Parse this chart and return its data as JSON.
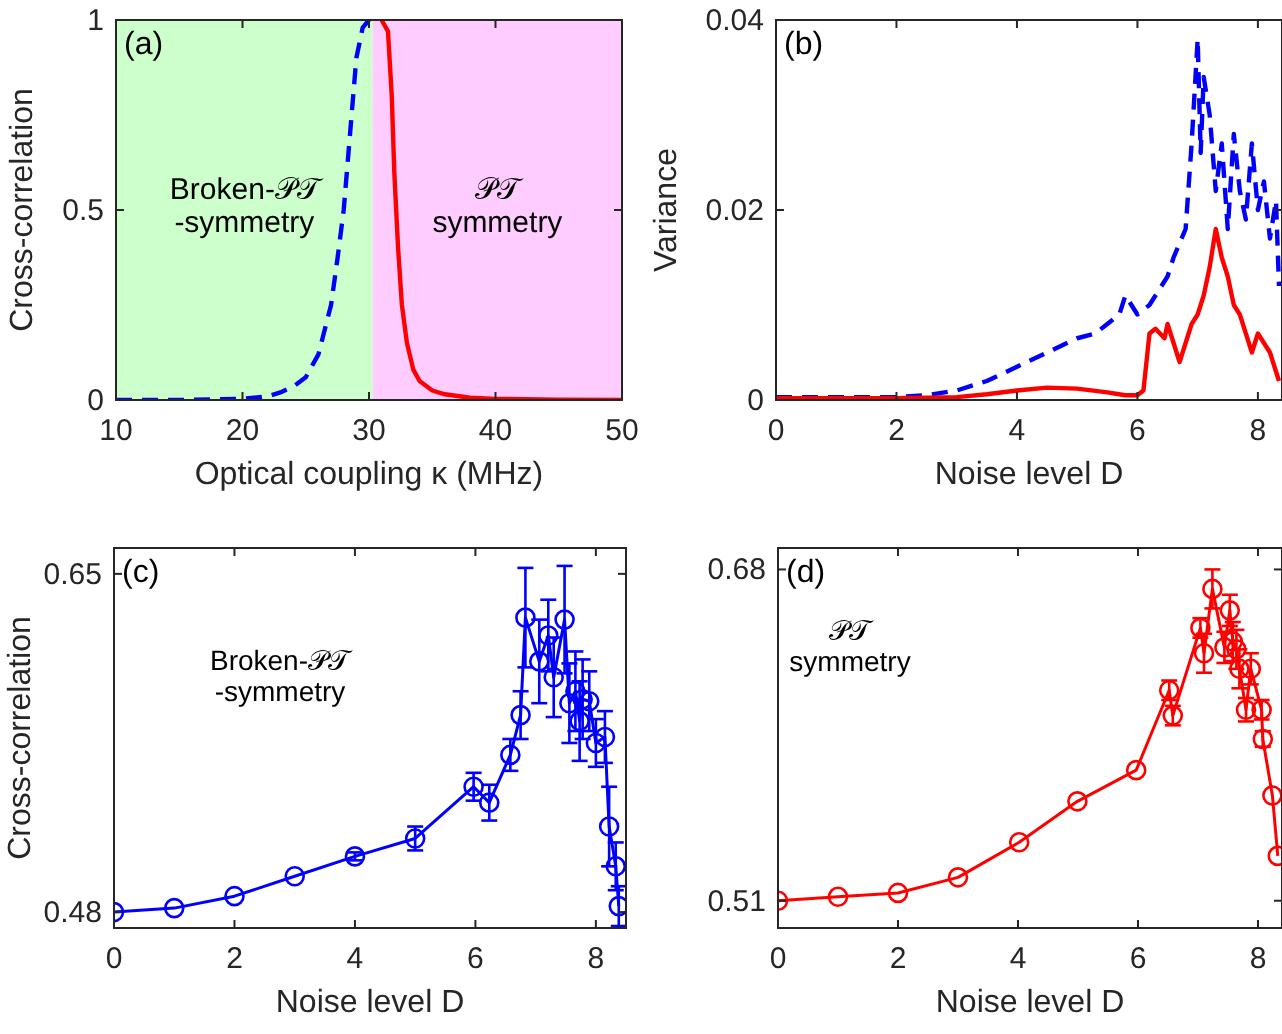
{
  "chart_data": [
    {
      "type": "line",
      "xlabel": "Optical coupling κ (MHz)",
      "ylabel": "Cross-correlation",
      "xlim": [
        10,
        50
      ],
      "ylim": [
        0,
        1
      ],
      "xticks": [
        10,
        20,
        30,
        40,
        50
      ],
      "yticks": [
        0,
        0.5,
        1
      ],
      "grid": false,
      "annotations": [
        "(a)"
      ],
      "bands": [
        {
          "axis": "x",
          "from": 10,
          "to": 30.3,
          "label": "Broken-𝒫𝒯\n-symmetry",
          "color": "#ccffcc"
        },
        {
          "axis": "x",
          "from": 30.3,
          "to": 50,
          "label": "𝒫𝒯\nsymmetry",
          "color": "#ffccff"
        }
      ],
      "series": [
        {
          "color": "#0000ff",
          "line_style": "dashed",
          "x": [
            10,
            15,
            20,
            22,
            23,
            24,
            25,
            26,
            27,
            27.5,
            28,
            28.5,
            29,
            29.5,
            30
          ],
          "values": [
            0,
            0,
            0.003,
            0.01,
            0.02,
            0.035,
            0.06,
            0.12,
            0.25,
            0.37,
            0.5,
            0.7,
            0.9,
            0.98,
            1
          ]
        },
        {
          "color": "#ff0000",
          "line_style": "solid",
          "x": [
            31,
            31.5,
            31.8,
            32,
            32.3,
            32.6,
            33,
            33.5,
            34,
            35,
            36,
            38,
            40,
            45,
            50
          ],
          "values": [
            1,
            0.97,
            0.8,
            0.6,
            0.4,
            0.25,
            0.15,
            0.08,
            0.05,
            0.025,
            0.015,
            0.006,
            0.003,
            0.001,
            0
          ]
        }
      ]
    },
    {
      "type": "line",
      "xlabel": "Noise level D",
      "ylabel": "Variance",
      "xlim": [
        0,
        8.4
      ],
      "ylim": [
        0,
        0.04
      ],
      "xticks": [
        0,
        2,
        4,
        6,
        8
      ],
      "yticks": [
        0,
        0.02,
        0.04
      ],
      "grid": false,
      "annotations": [
        "(b)"
      ],
      "series": [
        {
          "color": "#0000ff",
          "line_style": "dashed",
          "x": [
            0,
            1,
            2,
            2.5,
            3,
            3.5,
            4,
            4.5,
            5,
            5.3,
            5.5,
            5.7,
            5.8,
            6,
            6.2,
            6.3,
            6.5,
            6.6,
            6.8,
            6.9,
            7,
            7.05,
            7.1,
            7.2,
            7.3,
            7.4,
            7.5,
            7.6,
            7.7,
            7.8,
            7.9,
            8,
            8.1,
            8.2,
            8.3,
            8.35
          ],
          "values": [
            0.0003,
            0.0003,
            0.0003,
            0.0005,
            0.001,
            0.002,
            0.0035,
            0.005,
            0.0065,
            0.007,
            0.008,
            0.009,
            0.011,
            0.009,
            0.01,
            0.011,
            0.013,
            0.015,
            0.018,
            0.027,
            0.038,
            0.026,
            0.034,
            0.03,
            0.022,
            0.027,
            0.018,
            0.028,
            0.022,
            0.019,
            0.027,
            0.02,
            0.023,
            0.017,
            0.021,
            0.012
          ]
        },
        {
          "color": "#ff0000",
          "line_style": "solid",
          "x": [
            0,
            1,
            2,
            3,
            3.5,
            4,
            4.5,
            5,
            5.5,
            5.8,
            6,
            6.1,
            6.2,
            6.3,
            6.45,
            6.5,
            6.7,
            6.9,
            7,
            7.1,
            7.2,
            7.3,
            7.4,
            7.5,
            7.6,
            7.7,
            7.8,
            7.9,
            8,
            8.1,
            8.2,
            8.3,
            8.35
          ],
          "values": [
            0.0002,
            0.0002,
            0.0002,
            0.0003,
            0.0006,
            0.001,
            0.0013,
            0.0012,
            0.0008,
            0.0005,
            0.0005,
            0.001,
            0.007,
            0.0075,
            0.0065,
            0.008,
            0.004,
            0.008,
            0.009,
            0.011,
            0.014,
            0.018,
            0.015,
            0.013,
            0.01,
            0.009,
            0.007,
            0.005,
            0.007,
            0.006,
            0.005,
            0.003,
            0.002
          ]
        }
      ]
    },
    {
      "type": "line",
      "xlabel": "Noise level D",
      "ylabel": "Cross-correlation",
      "xlim": [
        0,
        8.5
      ],
      "ylim": [
        0.472,
        0.663
      ],
      "xticks": [
        0,
        2,
        4,
        6,
        8
      ],
      "yticks": [
        0.48,
        0.65
      ],
      "grid": false,
      "marker": "circle",
      "annotations": [
        "(c)",
        "Broken-𝒫𝒯\n-symmetry"
      ],
      "series": [
        {
          "color": "#0000ff",
          "line_style": "solid",
          "x": [
            0,
            1,
            2,
            3,
            4,
            5,
            5.97,
            6.23,
            6.58,
            6.75,
            6.83,
            7.06,
            7.21,
            7.3,
            7.48,
            7.56,
            7.66,
            7.73,
            7.78,
            7.89,
            8,
            8.15,
            8.22,
            8.33,
            8.38
          ],
          "values": [
            0.48,
            0.482,
            0.488,
            0.498,
            0.508,
            0.517,
            0.543,
            0.535,
            0.559,
            0.579,
            0.628,
            0.606,
            0.619,
            0.598,
            0.627,
            0.585,
            0.591,
            0.576,
            0.587,
            0.586,
            0.565,
            0.568,
            0.523,
            0.503,
            0.483
          ],
          "errors": [
            null,
            null,
            null,
            null,
            0.002,
            0.006,
            0.007,
            0.009,
            0.008,
            0.012,
            0.025,
            0.021,
            0.018,
            0.02,
            0.027,
            0.02,
            0.02,
            0.02,
            0.02,
            0.015,
            0.012,
            0.013,
            0.02,
            0.012,
            0.01
          ]
        }
      ]
    },
    {
      "type": "line",
      "xlabel": "Noise level D",
      "xlim": [
        0,
        8.4
      ],
      "ylim": [
        0.496,
        0.691
      ],
      "xticks": [
        0,
        2,
        4,
        6,
        8
      ],
      "yticks": [
        0.51,
        0.68
      ],
      "grid": false,
      "marker": "circle",
      "annotations": [
        "(d)",
        "𝒫𝒯\nsymmetry"
      ],
      "series": [
        {
          "color": "#ff0000",
          "line_style": "solid",
          "x": [
            0,
            1,
            2,
            3,
            4.02,
            4.99,
            5.97,
            6.52,
            6.58,
            7.04,
            7.1,
            7.24,
            7.44,
            7.53,
            7.58,
            7.64,
            7.69,
            7.8,
            7.88,
            8.06,
            8.08,
            8.24,
            8.33
          ],
          "values": [
            0.51,
            0.512,
            0.514,
            0.522,
            0.54,
            0.561,
            0.577,
            0.618,
            0.605,
            0.65,
            0.637,
            0.67,
            0.64,
            0.659,
            0.643,
            0.639,
            0.629,
            0.608,
            0.629,
            0.608,
            0.593,
            0.564,
            0.533
          ],
          "errors": [
            null,
            null,
            null,
            null,
            null,
            null,
            null,
            0.005,
            0.005,
            0.005,
            0.01,
            0.01,
            0.008,
            0.008,
            0.01,
            0.01,
            0.01,
            0.006,
            0.008,
            0.005,
            0.004,
            null,
            null
          ]
        }
      ]
    }
  ]
}
